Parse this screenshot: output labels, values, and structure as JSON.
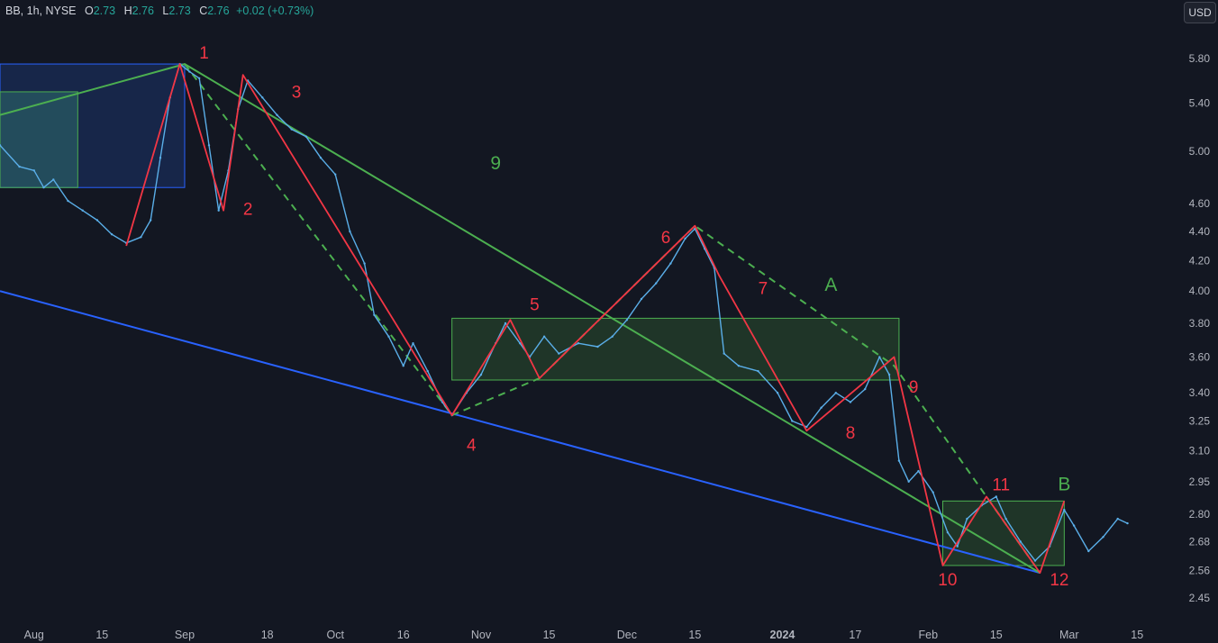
{
  "header": {
    "symbol": "BB, 1h, NYSE",
    "o_label": "O",
    "o_value": "2.73",
    "h_label": "H",
    "h_value": "2.76",
    "l_label": "L",
    "l_value": "2.73",
    "c_label": "C",
    "c_value": "2.76",
    "change": "+0.02 (+0.73%)"
  },
  "currency": "USD",
  "colors": {
    "background": "#131722",
    "price": "#5aaee8",
    "wave_red": "#f23645",
    "wave_green": "#4caf50",
    "trend_blue": "#2962ff",
    "grid_text": "#b2b5be"
  },
  "chart_data": {
    "type": "line",
    "title": "",
    "xlabel": "",
    "ylabel": "",
    "scale": "log",
    "ylim": [
      2.38,
      6.1
    ],
    "grid": false,
    "price_ticks": [
      "5.80",
      "5.40",
      "5.00",
      "4.60",
      "4.40",
      "4.20",
      "4.00",
      "3.80",
      "3.60",
      "3.40",
      "3.25",
      "3.10",
      "2.95",
      "2.80",
      "2.68",
      "2.56",
      "2.45"
    ],
    "x_ticks": [
      {
        "date": "2023-08-01",
        "label": "Aug"
      },
      {
        "date": "2023-08-15",
        "label": "15"
      },
      {
        "date": "2023-09-01",
        "label": "Sep"
      },
      {
        "date": "2023-09-18",
        "label": "18"
      },
      {
        "date": "2023-10-02",
        "label": "Oct"
      },
      {
        "date": "2023-10-16",
        "label": "16"
      },
      {
        "date": "2023-11-01",
        "label": "Nov"
      },
      {
        "date": "2023-11-15",
        "label": "15"
      },
      {
        "date": "2023-12-01",
        "label": "Dec"
      },
      {
        "date": "2023-12-15",
        "label": "15"
      },
      {
        "date": "2024-01-02",
        "label": "2024",
        "bold": true
      },
      {
        "date": "2024-01-17",
        "label": "17"
      },
      {
        "date": "2024-02-01",
        "label": "Feb"
      },
      {
        "date": "2024-02-15",
        "label": "15"
      },
      {
        "date": "2024-03-01",
        "label": "Mar"
      },
      {
        "date": "2024-03-15",
        "label": "15"
      }
    ],
    "series": [
      {
        "values": [
          [
            "2023-07-25",
            5.05
          ],
          [
            "2023-07-29",
            4.88
          ],
          [
            "2023-08-01",
            4.85
          ],
          [
            "2023-08-03",
            4.72
          ],
          [
            "2023-08-05",
            4.78
          ],
          [
            "2023-08-08",
            4.62
          ],
          [
            "2023-08-11",
            4.55
          ],
          [
            "2023-08-14",
            4.48
          ],
          [
            "2023-08-17",
            4.38
          ],
          [
            "2023-08-20",
            4.32
          ],
          [
            "2023-08-23",
            4.36
          ],
          [
            "2023-08-25",
            4.48
          ],
          [
            "2023-08-27",
            4.95
          ],
          [
            "2023-08-29",
            5.45
          ],
          [
            "2023-08-31",
            5.75
          ],
          [
            "2023-09-02",
            5.68
          ],
          [
            "2023-09-04",
            5.62
          ],
          [
            "2023-09-06",
            5.05
          ],
          [
            "2023-09-08",
            4.55
          ],
          [
            "2023-09-10",
            4.85
          ],
          [
            "2023-09-12",
            5.35
          ],
          [
            "2023-09-14",
            5.6
          ],
          [
            "2023-09-17",
            5.45
          ],
          [
            "2023-09-20",
            5.3
          ],
          [
            "2023-09-23",
            5.18
          ],
          [
            "2023-09-26",
            5.12
          ],
          [
            "2023-09-29",
            4.95
          ],
          [
            "2023-10-02",
            4.82
          ],
          [
            "2023-10-05",
            4.4
          ],
          [
            "2023-10-08",
            4.18
          ],
          [
            "2023-10-10",
            3.85
          ],
          [
            "2023-10-13",
            3.72
          ],
          [
            "2023-10-16",
            3.55
          ],
          [
            "2023-10-18",
            3.68
          ],
          [
            "2023-10-21",
            3.52
          ],
          [
            "2023-10-24",
            3.35
          ],
          [
            "2023-10-26",
            3.28
          ],
          [
            "2023-10-29",
            3.4
          ],
          [
            "2023-11-01",
            3.5
          ],
          [
            "2023-11-04",
            3.68
          ],
          [
            "2023-11-06",
            3.8
          ],
          [
            "2023-11-09",
            3.68
          ],
          [
            "2023-11-11",
            3.6
          ],
          [
            "2023-11-14",
            3.72
          ],
          [
            "2023-11-17",
            3.62
          ],
          [
            "2023-11-21",
            3.68
          ],
          [
            "2023-11-25",
            3.66
          ],
          [
            "2023-11-28",
            3.72
          ],
          [
            "2023-12-01",
            3.82
          ],
          [
            "2023-12-04",
            3.95
          ],
          [
            "2023-12-07",
            4.05
          ],
          [
            "2023-12-10",
            4.18
          ],
          [
            "2023-12-13",
            4.35
          ],
          [
            "2023-12-15",
            4.42
          ],
          [
            "2023-12-17",
            4.28
          ],
          [
            "2023-12-19",
            4.15
          ],
          [
            "2023-12-21",
            3.62
          ],
          [
            "2023-12-24",
            3.55
          ],
          [
            "2023-12-28",
            3.52
          ],
          [
            "2024-01-01",
            3.4
          ],
          [
            "2024-01-04",
            3.25
          ],
          [
            "2024-01-07",
            3.22
          ],
          [
            "2024-01-10",
            3.32
          ],
          [
            "2024-01-13",
            3.4
          ],
          [
            "2024-01-16",
            3.35
          ],
          [
            "2024-01-19",
            3.42
          ],
          [
            "2024-01-22",
            3.6
          ],
          [
            "2024-01-24",
            3.5
          ],
          [
            "2024-01-26",
            3.05
          ],
          [
            "2024-01-28",
            2.95
          ],
          [
            "2024-01-30",
            3.0
          ],
          [
            "2024-02-02",
            2.9
          ],
          [
            "2024-02-05",
            2.72
          ],
          [
            "2024-02-07",
            2.66
          ],
          [
            "2024-02-09",
            2.78
          ],
          [
            "2024-02-12",
            2.84
          ],
          [
            "2024-02-15",
            2.88
          ],
          [
            "2024-02-17",
            2.78
          ],
          [
            "2024-02-20",
            2.68
          ],
          [
            "2024-02-23",
            2.6
          ],
          [
            "2024-02-26",
            2.66
          ],
          [
            "2024-02-29",
            2.82
          ],
          [
            "2024-03-02",
            2.75
          ],
          [
            "2024-03-05",
            2.64
          ],
          [
            "2024-03-08",
            2.7
          ],
          [
            "2024-03-11",
            2.78
          ],
          [
            "2024-03-13",
            2.76
          ]
        ]
      }
    ]
  },
  "overlays": {
    "wave_labels_red": [
      {
        "text": "1",
        "date": "2023-09-05",
        "price": 5.8
      },
      {
        "text": "2",
        "date": "2023-09-14",
        "price": 4.52
      },
      {
        "text": "3",
        "date": "2023-09-24",
        "price": 5.45
      },
      {
        "text": "4",
        "date": "2023-10-30",
        "price": 3.1
      },
      {
        "text": "5",
        "date": "2023-11-12",
        "price": 3.88
      },
      {
        "text": "6",
        "date": "2023-12-09",
        "price": 4.32
      },
      {
        "text": "7",
        "date": "2023-12-29",
        "price": 3.98
      },
      {
        "text": "8",
        "date": "2024-01-16",
        "price": 3.16
      },
      {
        "text": "9",
        "date": "2024-01-29",
        "price": 3.4
      },
      {
        "text": "10",
        "date": "2024-02-05",
        "price": 2.5
      },
      {
        "text": "11",
        "date": "2024-02-16",
        "price": 2.91
      },
      {
        "text": "12",
        "date": "2024-02-28",
        "price": 2.5
      }
    ],
    "wave_labels_green": [
      {
        "text": "9",
        "date": "2023-11-04",
        "price": 4.86
      },
      {
        "text": "A",
        "date": "2024-01-12",
        "price": 4.0
      },
      {
        "text": "B",
        "date": "2024-02-29",
        "price": 2.91
      }
    ],
    "red_path_1": [
      [
        "2023-08-20",
        4.3
      ],
      [
        "2023-08-31",
        5.75
      ],
      [
        "2023-09-09",
        4.55
      ],
      [
        "2023-09-13",
        5.65
      ],
      [
        "2023-10-26",
        3.28
      ],
      [
        "2023-11-07",
        3.82
      ],
      [
        "2023-11-13",
        3.48
      ],
      [
        "2023-12-15",
        4.44
      ],
      [
        "2023-12-20",
        4.1
      ],
      [
        "2024-01-07",
        3.2
      ],
      [
        "2024-01-25",
        3.6
      ],
      [
        "2024-02-04",
        2.58
      ],
      [
        "2024-02-13",
        2.88
      ],
      [
        "2024-02-24",
        2.55
      ],
      [
        "2024-02-29",
        2.86
      ]
    ],
    "green_dashed": [
      [
        [
          "2023-09-01",
          5.75
        ],
        [
          "2023-10-26",
          3.28
        ],
        [
          "2023-11-13",
          3.48
        ],
        [
          "2023-12-15",
          4.44
        ],
        [
          "2024-01-25",
          3.55
        ],
        [
          "2024-02-13",
          2.88
        ],
        [
          "2024-02-24",
          2.55
        ]
      ]
    ],
    "green_solid": [
      [
        [
          "2023-07-25",
          5.3
        ],
        [
          "2023-09-01",
          5.75
        ],
        [
          "2024-02-24",
          2.55
        ]
      ]
    ],
    "blue_trend": [
      [
        "2023-07-25",
        4.0
      ],
      [
        "2024-02-24",
        2.55
      ]
    ],
    "boxes": [
      {
        "from": [
          "2023-07-25",
          5.75
        ],
        "to": [
          "2023-09-01",
          4.72
        ],
        "fill": "#1c3a7a",
        "stroke": "#2962ff",
        "opacity": 0.45
      },
      {
        "from": [
          "2023-07-25",
          5.5
        ],
        "to": [
          "2023-08-10",
          4.72
        ],
        "fill": "#2e6b6b",
        "stroke": "#4caf50",
        "opacity": 0.55
      },
      {
        "from": [
          "2023-10-26",
          3.83
        ],
        "to": [
          "2024-01-26",
          3.47
        ],
        "fill": "#2e5a30",
        "stroke": "#4caf50",
        "opacity": 0.45
      },
      {
        "from": [
          "2024-02-04",
          2.86
        ],
        "to": [
          "2024-02-29",
          2.58
        ],
        "fill": "#2e5a30",
        "stroke": "#4caf50",
        "opacity": 0.45
      }
    ]
  }
}
